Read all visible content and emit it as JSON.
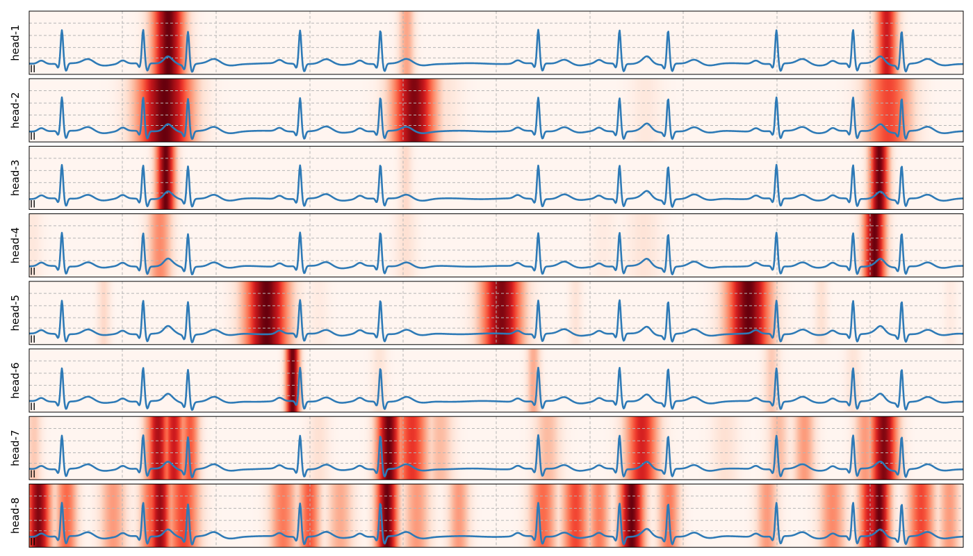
{
  "figure": {
    "lead_label": "II"
  },
  "chart_data": {
    "type": "heatmap",
    "subtype": "attention-heatmap-with-ecg-trace",
    "trace_color": "#2e7ab6",
    "colormap": "Reds",
    "grid": true,
    "grid_style": "dashed",
    "x_gridlines_count": 9,
    "y_gridlines_count": 4,
    "ecg_r_peaks": [
      0.035,
      0.122,
      0.17,
      0.29,
      0.376,
      0.545,
      0.632,
      0.684,
      0.8,
      0.882,
      0.934
    ],
    "panels": [
      {
        "name": "head-1",
        "lead": "II",
        "attention": [
          {
            "center": 0.149,
            "width": 0.012,
            "intensity": 1.0
          },
          {
            "center": 0.404,
            "width": 0.006,
            "intensity": 0.32
          },
          {
            "center": 0.918,
            "width": 0.008,
            "intensity": 0.75
          }
        ]
      },
      {
        "name": "head-2",
        "lead": "II",
        "attention": [
          {
            "center": 0.145,
            "width": 0.02,
            "intensity": 1.0
          },
          {
            "center": 0.172,
            "width": 0.012,
            "intensity": 0.2
          },
          {
            "center": 0.412,
            "width": 0.016,
            "intensity": 0.95
          },
          {
            "center": 0.44,
            "width": 0.015,
            "intensity": 0.12
          },
          {
            "center": 0.66,
            "width": 0.012,
            "intensity": 0.08
          },
          {
            "center": 0.92,
            "width": 0.017,
            "intensity": 0.6
          }
        ]
      },
      {
        "name": "head-3",
        "lead": "II",
        "attention": [
          {
            "center": 0.146,
            "width": 0.007,
            "intensity": 1.0
          },
          {
            "center": 0.403,
            "width": 0.005,
            "intensity": 0.15
          },
          {
            "center": 0.91,
            "width": 0.007,
            "intensity": 1.0
          }
        ]
      },
      {
        "name": "head-4",
        "lead": "II",
        "attention": [
          {
            "center": 0.003,
            "width": 0.008,
            "intensity": 0.08
          },
          {
            "center": 0.14,
            "width": 0.009,
            "intensity": 0.4
          },
          {
            "center": 0.403,
            "width": 0.008,
            "intensity": 0.12
          },
          {
            "center": 0.615,
            "width": 0.01,
            "intensity": 0.06
          },
          {
            "center": 0.658,
            "width": 0.013,
            "intensity": 0.1
          },
          {
            "center": 0.905,
            "width": 0.008,
            "intensity": 1.0
          }
        ]
      },
      {
        "name": "head-5",
        "lead": "II",
        "attention": [
          {
            "center": 0.08,
            "width": 0.005,
            "intensity": 0.15
          },
          {
            "center": 0.254,
            "width": 0.016,
            "intensity": 1.0
          },
          {
            "center": 0.31,
            "width": 0.008,
            "intensity": 0.06
          },
          {
            "center": 0.506,
            "width": 0.015,
            "intensity": 0.95
          },
          {
            "center": 0.585,
            "width": 0.005,
            "intensity": 0.1
          },
          {
            "center": 0.77,
            "width": 0.016,
            "intensity": 1.0
          },
          {
            "center": 0.848,
            "width": 0.005,
            "intensity": 0.12
          },
          {
            "center": 0.986,
            "width": 0.005,
            "intensity": 0.06
          }
        ]
      },
      {
        "name": "head-6",
        "lead": "II",
        "attention": [
          {
            "center": 0.282,
            "width": 0.005,
            "intensity": 1.0
          },
          {
            "center": 0.375,
            "width": 0.006,
            "intensity": 0.1
          },
          {
            "center": 0.54,
            "width": 0.005,
            "intensity": 0.3
          },
          {
            "center": 0.795,
            "width": 0.006,
            "intensity": 0.2
          },
          {
            "center": 0.882,
            "width": 0.006,
            "intensity": 0.1
          }
        ]
      },
      {
        "name": "head-7",
        "lead": "II",
        "attention": [
          {
            "center": 0.005,
            "width": 0.006,
            "intensity": 0.2
          },
          {
            "center": 0.13,
            "width": 0.006,
            "intensity": 0.4
          },
          {
            "center": 0.138,
            "width": 0.008,
            "intensity": 0.85
          },
          {
            "center": 0.155,
            "width": 0.008,
            "intensity": 0.75
          },
          {
            "center": 0.172,
            "width": 0.007,
            "intensity": 0.55
          },
          {
            "center": 0.31,
            "width": 0.008,
            "intensity": 0.12
          },
          {
            "center": 0.385,
            "width": 0.009,
            "intensity": 1.0
          },
          {
            "center": 0.41,
            "width": 0.012,
            "intensity": 0.65
          },
          {
            "center": 0.44,
            "width": 0.01,
            "intensity": 0.25
          },
          {
            "center": 0.555,
            "width": 0.01,
            "intensity": 0.25
          },
          {
            "center": 0.656,
            "width": 0.012,
            "intensity": 0.72
          },
          {
            "center": 0.745,
            "width": 0.01,
            "intensity": 0.12
          },
          {
            "center": 0.802,
            "width": 0.008,
            "intensity": 0.25
          },
          {
            "center": 0.83,
            "width": 0.008,
            "intensity": 0.35
          },
          {
            "center": 0.895,
            "width": 0.008,
            "intensity": 0.35
          },
          {
            "center": 0.915,
            "width": 0.01,
            "intensity": 0.95
          }
        ]
      },
      {
        "name": "head-8",
        "lead": "II",
        "attention": [
          {
            "center": 0.01,
            "width": 0.009,
            "intensity": 0.95
          },
          {
            "center": 0.04,
            "width": 0.008,
            "intensity": 0.5
          },
          {
            "center": 0.09,
            "width": 0.01,
            "intensity": 0.35
          },
          {
            "center": 0.132,
            "width": 0.009,
            "intensity": 0.55
          },
          {
            "center": 0.14,
            "width": 0.008,
            "intensity": 0.9
          },
          {
            "center": 0.165,
            "width": 0.012,
            "intensity": 0.6
          },
          {
            "center": 0.272,
            "width": 0.01,
            "intensity": 0.45
          },
          {
            "center": 0.3,
            "width": 0.008,
            "intensity": 0.55
          },
          {
            "center": 0.333,
            "width": 0.01,
            "intensity": 0.3
          },
          {
            "center": 0.383,
            "width": 0.008,
            "intensity": 1.0
          },
          {
            "center": 0.415,
            "width": 0.01,
            "intensity": 0.35
          },
          {
            "center": 0.46,
            "width": 0.008,
            "intensity": 0.35
          },
          {
            "center": 0.55,
            "width": 0.01,
            "intensity": 0.5
          },
          {
            "center": 0.585,
            "width": 0.01,
            "intensity": 0.6
          },
          {
            "center": 0.61,
            "width": 0.008,
            "intensity": 0.45
          },
          {
            "center": 0.645,
            "width": 0.009,
            "intensity": 1.0
          },
          {
            "center": 0.685,
            "width": 0.008,
            "intensity": 0.45
          },
          {
            "center": 0.79,
            "width": 0.008,
            "intensity": 0.35
          },
          {
            "center": 0.86,
            "width": 0.01,
            "intensity": 0.4
          },
          {
            "center": 0.9,
            "width": 0.008,
            "intensity": 0.75
          },
          {
            "center": 0.91,
            "width": 0.008,
            "intensity": 1.0
          },
          {
            "center": 0.955,
            "width": 0.01,
            "intensity": 0.6
          },
          {
            "center": 0.985,
            "width": 0.008,
            "intensity": 0.35
          }
        ]
      }
    ]
  }
}
